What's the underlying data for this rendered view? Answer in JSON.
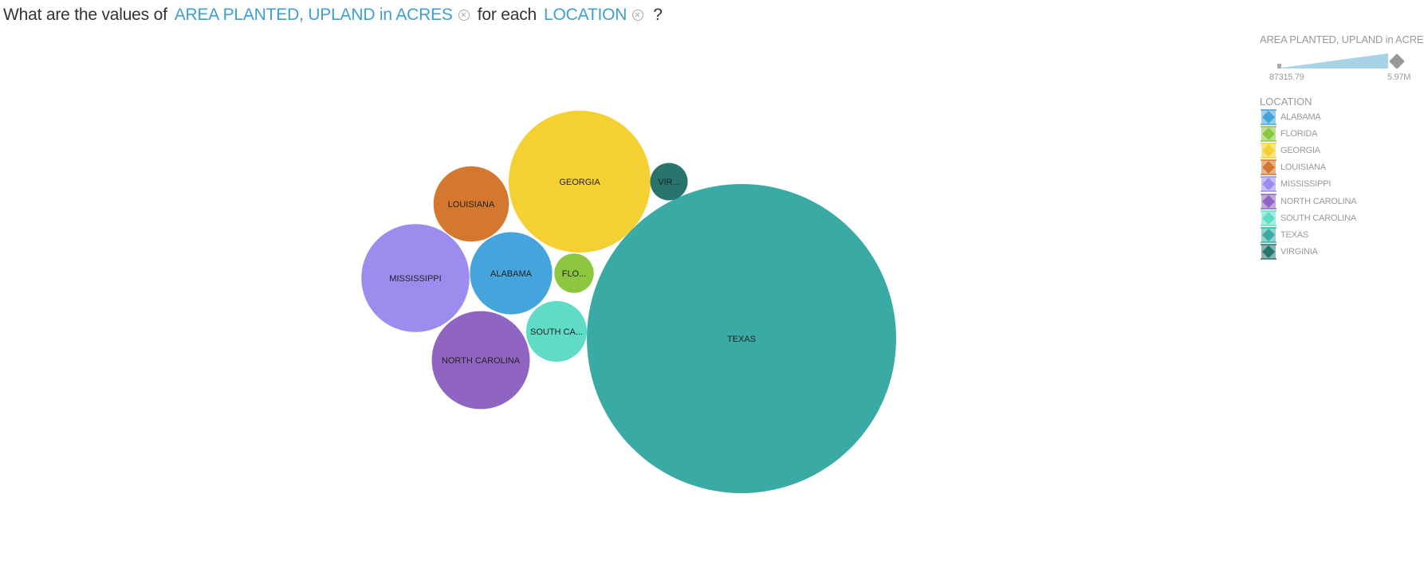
{
  "question": {
    "prefix": "What are the values of",
    "measure": "AREA PLANTED, UPLAND in ACRES",
    "middle": "for each",
    "dimension": "LOCATION",
    "suffix": "?"
  },
  "legend": {
    "size_title": "AREA PLANTED, UPLAND in ACRES",
    "size_min": "87315.79",
    "size_max": "5.97M",
    "size_bar_color": "#a8d3e6",
    "color_title": "LOCATION"
  },
  "chart_data": {
    "type": "bubble",
    "size_measure": "AREA PLANTED, UPLAND in ACRES",
    "color_dimension": "LOCATION",
    "size_range": [
      87315.79,
      5970000
    ],
    "series": [
      {
        "name": "ALABAMA",
        "label": "ALABAMA",
        "value": 422000,
        "color": "#45a4db"
      },
      {
        "name": "FLORIDA",
        "label": "FLO...",
        "value": 97000,
        "color": "#8dc63f"
      },
      {
        "name": "GEORGIA",
        "label": "GEORGIA",
        "value": 1260000,
        "color": "#f5d033"
      },
      {
        "name": "LOUISIANA",
        "label": "LOUISIANA",
        "value": 355000,
        "color": "#d4782f"
      },
      {
        "name": "MISSISSIPPI",
        "label": "MISSISSIPPI",
        "value": 730000,
        "color": "#9b8ded"
      },
      {
        "name": "NORTH CAROLINA",
        "label": "NORTH CAROLINA",
        "value": 600000,
        "color": "#9065c1"
      },
      {
        "name": "SOUTH CAROLINA",
        "label": "SOUTH CA...",
        "value": 230000,
        "color": "#5fdcc6"
      },
      {
        "name": "TEXAS",
        "label": "TEXAS",
        "value": 5970000,
        "color": "#39aba4"
      },
      {
        "name": "VIRGINIA",
        "label": "VIR...",
        "value": 87315.79,
        "color": "#27756c"
      }
    ]
  }
}
